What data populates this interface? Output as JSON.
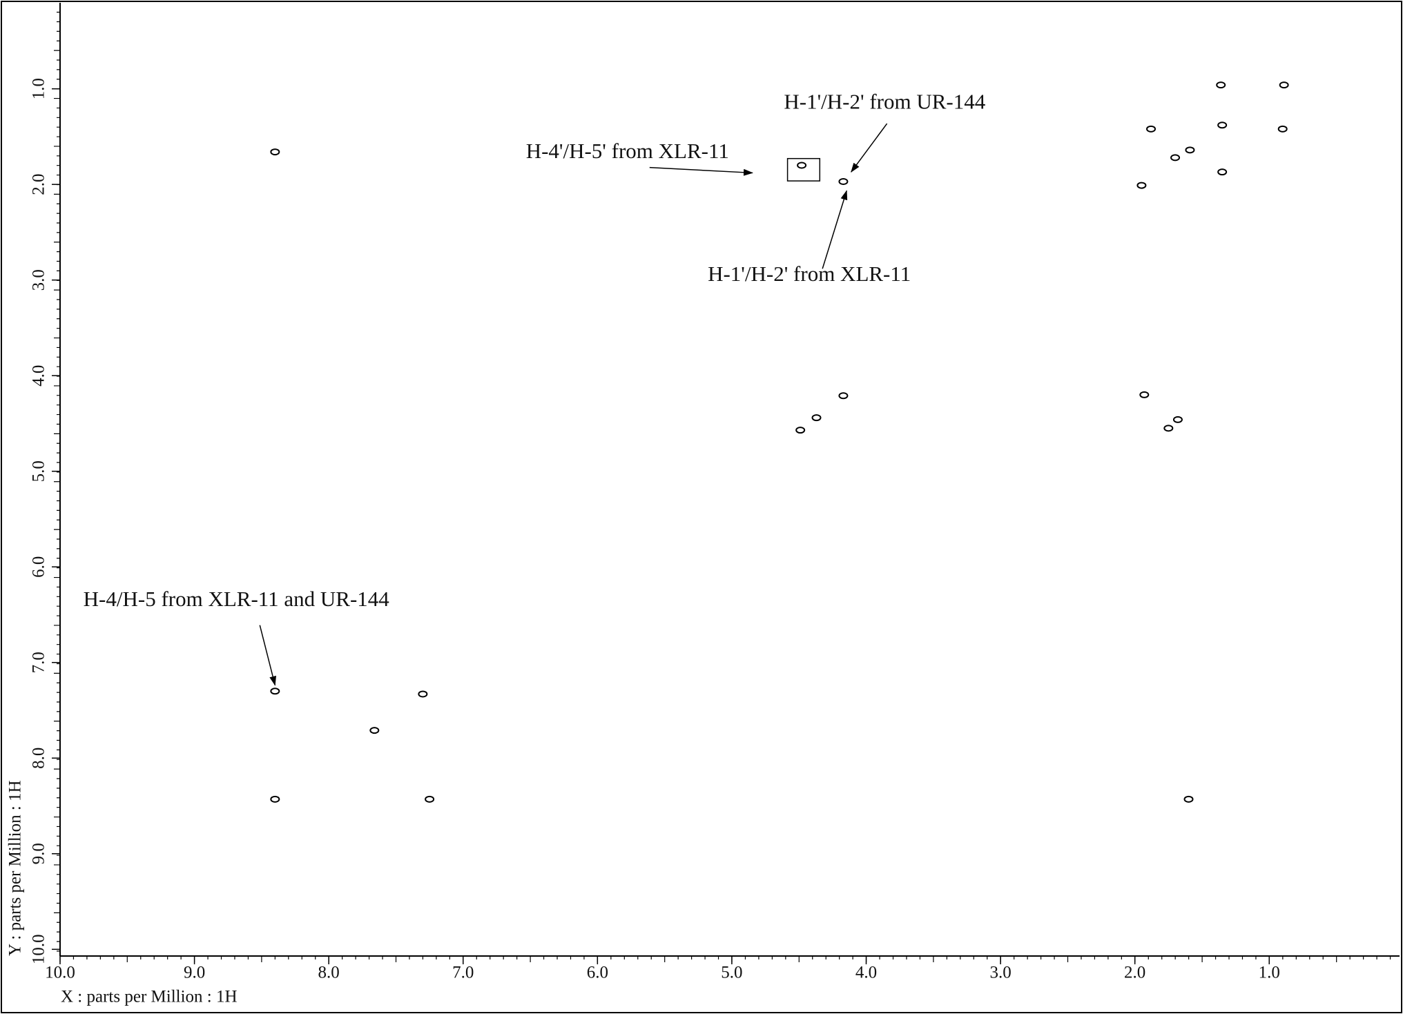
{
  "chart_data": {
    "type": "scatter",
    "x_label": "X : parts per Million : 1H",
    "y_label": "Y : parts per Million : 1H",
    "xlim": [
      10.0,
      0.03
    ],
    "ylim": [
      0.1,
      10.07
    ],
    "xticks": [
      {
        "value": 10,
        "label": "10.0"
      },
      {
        "value": 9,
        "label": "9.0"
      },
      {
        "value": 8,
        "label": "8.0"
      },
      {
        "value": 7,
        "label": "7.0"
      },
      {
        "value": 6,
        "label": "6.0"
      },
      {
        "value": 5,
        "label": "5.0"
      },
      {
        "value": 4,
        "label": "4.0"
      },
      {
        "value": 3,
        "label": "3.0"
      },
      {
        "value": 2,
        "label": "2.0"
      },
      {
        "value": 1,
        "label": "1.0"
      }
    ],
    "yticks": [
      {
        "value": 1,
        "label": "1.0"
      },
      {
        "value": 2,
        "label": "2.0"
      },
      {
        "value": 3,
        "label": "3.0"
      },
      {
        "value": 4,
        "label": "4.0"
      },
      {
        "value": 5,
        "label": "5.0"
      },
      {
        "value": 6,
        "label": "6.0"
      },
      {
        "value": 7,
        "label": "7.0"
      },
      {
        "value": 8,
        "label": "8.0"
      },
      {
        "value": 9,
        "label": "9.0"
      },
      {
        "value": 10,
        "label": "10.0"
      }
    ],
    "x": [
      8.4,
      0.89,
      1.35,
      0.9,
      1.36,
      1.59,
      1.7,
      1.95,
      1.88,
      1.35,
      4.17,
      4.48,
      4.17,
      4.37,
      4.49,
      1.93,
      1.68,
      1.75,
      8.4,
      7.66,
      7.3,
      8.4,
      7.25,
      1.6
    ],
    "values": [
      1.66,
      0.96,
      1.38,
      1.42,
      0.96,
      1.64,
      1.72,
      2.01,
      1.42,
      1.87,
      1.97,
      1.8,
      4.21,
      4.44,
      4.57,
      4.2,
      4.46,
      4.55,
      7.3,
      7.71,
      7.33,
      8.43,
      8.43,
      8.43
    ],
    "color": "#000000",
    "annotations": [
      {
        "text": "H-1'/H-2' from UR-144"
      },
      {
        "text": "H-4'/H-5' from XLR-11"
      },
      {
        "text": "H-1'/H-2' from XLR-11"
      },
      {
        "text": "H-4/H-5 from XLR-11 and UR-144"
      }
    ]
  }
}
